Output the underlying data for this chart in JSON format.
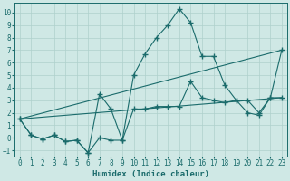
{
  "xlabel": "Humidex (Indice chaleur)",
  "xlim": [
    -0.5,
    23.5
  ],
  "ylim": [
    -1.5,
    10.8
  ],
  "xticks": [
    0,
    1,
    2,
    3,
    4,
    5,
    6,
    7,
    8,
    9,
    10,
    11,
    12,
    13,
    14,
    15,
    16,
    17,
    18,
    19,
    20,
    21,
    22,
    23
  ],
  "yticks": [
    -1,
    0,
    1,
    2,
    3,
    4,
    5,
    6,
    7,
    8,
    9,
    10
  ],
  "bg_color": "#cfe8e5",
  "grid_color": "#afd0cc",
  "line_color": "#1a6b6b",
  "line1_x": [
    0,
    1,
    2,
    3,
    4,
    5,
    6,
    7,
    8,
    9,
    10,
    11,
    12,
    13,
    14,
    15,
    16,
    17,
    18,
    19,
    20,
    21,
    22,
    23
  ],
  "line1_y": [
    1.5,
    0.2,
    -0.1,
    0.2,
    -0.3,
    -0.2,
    -1.2,
    0.0,
    -0.2,
    -0.2,
    5.0,
    6.7,
    8.0,
    9.0,
    10.3,
    9.2,
    6.5,
    6.5,
    4.2,
    3.0,
    3.0,
    2.0,
    3.2,
    7.0
  ],
  "line2_x": [
    0,
    1,
    2,
    3,
    4,
    5,
    6,
    7,
    8,
    9,
    10,
    11,
    12,
    13,
    14,
    15,
    16,
    17,
    18,
    19,
    20,
    21,
    22,
    23
  ],
  "line2_y": [
    1.5,
    0.2,
    -0.1,
    0.2,
    -0.3,
    -0.2,
    -1.2,
    3.5,
    2.3,
    -0.2,
    2.3,
    2.3,
    2.5,
    2.5,
    2.5,
    4.5,
    3.2,
    3.0,
    2.8,
    3.0,
    2.0,
    1.8,
    3.2,
    3.2
  ],
  "line3_x": [
    0,
    23
  ],
  "line3_y": [
    1.5,
    7.0
  ],
  "line4_x": [
    0,
    23
  ],
  "line4_y": [
    1.5,
    3.2
  ]
}
